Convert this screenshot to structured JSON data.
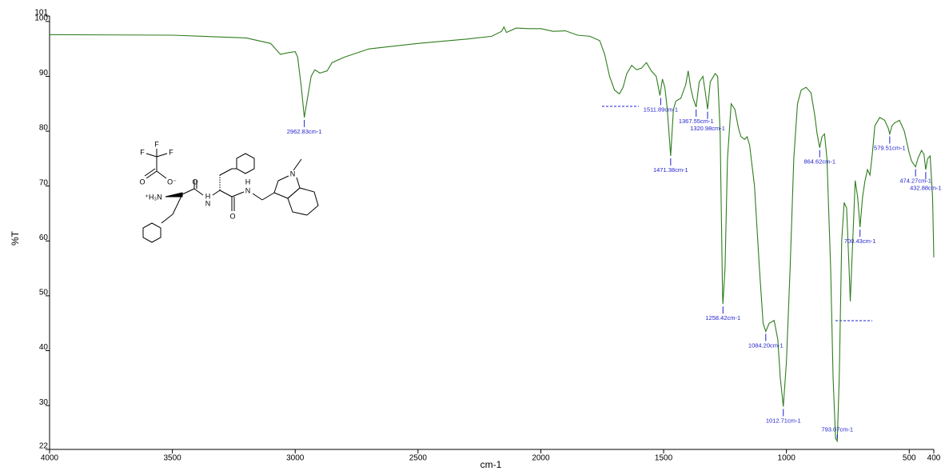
{
  "chart_data": {
    "type": "line",
    "x_label": "cm-1",
    "y_label": "%T",
    "color": "#2e7d1e",
    "peak_color": "#1f1fcf",
    "xlim": [
      4000,
      400
    ],
    "ylim": [
      22,
      101
    ],
    "xticks": [
      4000,
      3500,
      3000,
      2500,
      2000,
      1500,
      1000,
      500,
      400
    ],
    "yticks": [
      22,
      30,
      40,
      50,
      60,
      70,
      80,
      90,
      100,
      101
    ],
    "x": [
      4000,
      3500,
      3200,
      3100,
      3060,
      3030,
      3000,
      2990,
      2975,
      2962.83,
      2950,
      2935,
      2920,
      2900,
      2870,
      2850,
      2800,
      2700,
      2500,
      2300,
      2200,
      2160,
      2150,
      2140,
      2100,
      2050,
      2000,
      1950,
      1900,
      1850,
      1800,
      1760,
      1740,
      1720,
      1700,
      1680,
      1665,
      1650,
      1630,
      1610,
      1590,
      1570,
      1550,
      1530,
      1515,
      1505,
      1495,
      1485,
      1471.38,
      1460,
      1450,
      1430,
      1410,
      1400,
      1390,
      1380,
      1367.55,
      1355,
      1340,
      1330,
      1320.98,
      1310,
      1290,
      1280,
      1270,
      1260,
      1258.42,
      1250,
      1240,
      1225,
      1210,
      1195,
      1185,
      1170,
      1160,
      1150,
      1130,
      1110,
      1095,
      1084.2,
      1070,
      1050,
      1035,
      1025,
      1012.71,
      1000,
      985,
      970,
      955,
      940,
      920,
      900,
      885,
      875,
      864.62,
      855,
      845,
      835,
      820,
      810,
      800,
      793.07,
      785,
      775,
      765,
      755,
      745,
      740,
      730,
      720,
      710,
      700.43,
      690,
      680,
      670,
      660,
      650,
      640,
      620,
      600,
      585,
      579.51,
      570,
      560,
      540,
      520,
      500,
      490,
      474.27,
      465,
      450,
      440,
      432.88,
      425,
      415,
      405,
      400
    ],
    "values": [
      97.6,
      97.5,
      97.0,
      96.0,
      94.0,
      94.3,
      94.5,
      93.5,
      88,
      82.5,
      86,
      90,
      91.2,
      90.6,
      91.0,
      92.5,
      93.5,
      95.0,
      96.0,
      96.8,
      97.3,
      98.2,
      99.0,
      98.0,
      98.8,
      98.7,
      98.7,
      98.2,
      98.3,
      97.5,
      97.3,
      96.5,
      94.0,
      90,
      87.5,
      86.8,
      88,
      90.5,
      92,
      91.2,
      91.5,
      92.5,
      91,
      90,
      86.5,
      89.5,
      88,
      84,
      75.5,
      84,
      85.5,
      86,
      88.5,
      91,
      88,
      86,
      84.4,
      89,
      90,
      87,
      84,
      89,
      90.5,
      90,
      80,
      50,
      48.5,
      55,
      75,
      85,
      84,
      80.5,
      79,
      78.5,
      79,
      77.5,
      70,
      55,
      45,
      43.5,
      45,
      45.5,
      42,
      35,
      29.8,
      38,
      55,
      75,
      85,
      87.5,
      88,
      87,
      83,
      79.5,
      77,
      79,
      79.5,
      75,
      55,
      35,
      24,
      23.5,
      35,
      60,
      67,
      66,
      55,
      49,
      60,
      71,
      68,
      62.5,
      68,
      71,
      73,
      72,
      76,
      81,
      82.5,
      82,
      80.5,
      79.5,
      81,
      81.5,
      82,
      80,
      76,
      74.5,
      73.5,
      75,
      76.5,
      75.8,
      73,
      75,
      75.5,
      68,
      57
    ],
    "peaks": [
      {
        "x": 2962.83,
        "y": 82.5,
        "label": "2962.83cm-1"
      },
      {
        "x": 1511.89,
        "y": 86.5,
        "label": "1511.89cm-1"
      },
      {
        "x": 1471.38,
        "y": 75.5,
        "label": "1471.38cm-1"
      },
      {
        "x": 1367.55,
        "y": 84.4,
        "label": "1367.55cm-1"
      },
      {
        "x": 1320.98,
        "y": 84,
        "label": "1320.98cm-1"
      },
      {
        "x": 1258.42,
        "y": 48.5,
        "label": "1258.42cm-1"
      },
      {
        "x": 1084.2,
        "y": 43.5,
        "label": "1084.20cm-1"
      },
      {
        "x": 1012.71,
        "y": 29.8,
        "label": "1012.71cm-1"
      },
      {
        "x": 864.62,
        "y": 77,
        "label": "864.62cm-1"
      },
      {
        "x": 793.07,
        "y": 23.5,
        "label": "793.07cm-1"
      },
      {
        "x": 700.43,
        "y": 62.5,
        "label": "700.43cm-1"
      },
      {
        "x": 579.51,
        "y": 79.5,
        "label": "579.51cm-1"
      },
      {
        "x": 474.27,
        "y": 73.5,
        "label": "474.27cm-1"
      },
      {
        "x": 432.88,
        "y": 73,
        "label": "432.88cm-1"
      }
    ]
  },
  "structure": {
    "labels": [
      "F",
      "F",
      "F",
      "O",
      "O⁻",
      "⁺H₃N",
      "O",
      "N",
      "H",
      "O",
      "H",
      "N",
      "N"
    ]
  }
}
